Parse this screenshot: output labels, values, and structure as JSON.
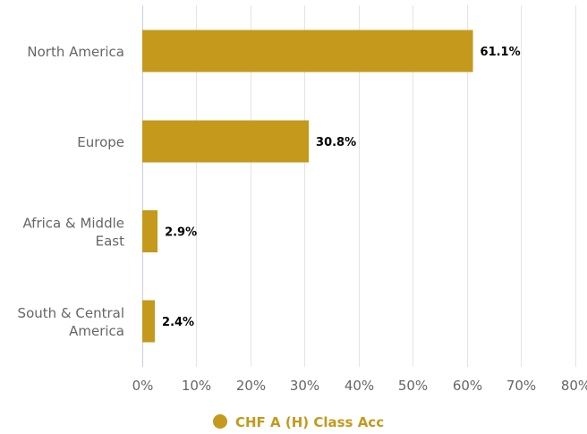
{
  "chart_data": {
    "type": "bar",
    "orientation": "horizontal",
    "categories": [
      [
        "North America"
      ],
      [
        "Europe"
      ],
      [
        "Africa & Middle",
        "East"
      ],
      [
        "South & Central",
        "America"
      ]
    ],
    "series": [
      {
        "name": "CHF A (H) Class Acc",
        "values": [
          61.1,
          30.8,
          2.9,
          2.4
        ],
        "value_labels": [
          "61.1%",
          "30.8%",
          "2.9%",
          "2.4%"
        ],
        "color": "#c4991c"
      }
    ],
    "x_ticks": [
      0,
      10,
      20,
      30,
      40,
      50,
      60,
      70,
      80
    ],
    "x_tick_labels": [
      "0%",
      "10%",
      "20%",
      "30%",
      "40%",
      "50%",
      "60%",
      "70%",
      "80%"
    ],
    "xlim": [
      0,
      80
    ],
    "grid": true,
    "legend_position": "bottom",
    "title": "",
    "xlabel": "",
    "ylabel": ""
  }
}
